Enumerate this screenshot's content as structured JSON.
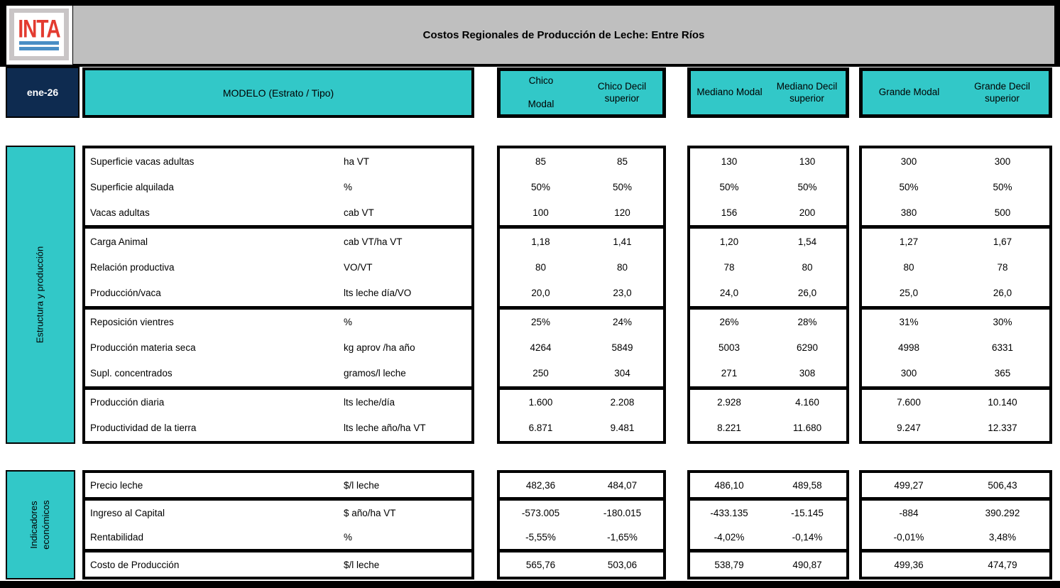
{
  "header": {
    "logo_text": "INTA",
    "title": "Costos Regionales de Producción de Leche: Entre Ríos",
    "date": "ene-26",
    "model_label": "MODELO (Estrato / Tipo)",
    "column_groups": [
      {
        "modal": "Chico\nModal",
        "decil": "Chico Decil superior"
      },
      {
        "modal": "Mediano Modal",
        "decil": "Mediano Decil superior"
      },
      {
        "modal": "Grande Modal",
        "decil": "Grande Decil superior"
      }
    ]
  },
  "colors": {
    "teal": "#32C8C8",
    "navy": "#0E2B50",
    "header_gray": "#BFBFBF",
    "logo_gray": "#C9C5C6",
    "logo_red": "#E33B30",
    "logo_blue": "#4A8EC5"
  },
  "sections": [
    {
      "name": "Estructura y producción",
      "blocks": [
        {
          "rows": [
            {
              "label": "Superficie vacas adultas",
              "unit": "ha VT",
              "values": [
                "85",
                "85",
                "130",
                "130",
                "300",
                "300"
              ]
            },
            {
              "label": "Superficie alquilada",
              "unit": "%",
              "values": [
                "50%",
                "50%",
                "50%",
                "50%",
                "50%",
                "50%"
              ]
            },
            {
              "label": "Vacas adultas",
              "unit": "cab VT",
              "values": [
                "100",
                "120",
                "156",
                "200",
                "380",
                "500"
              ]
            }
          ]
        },
        {
          "rows": [
            {
              "label": "Carga Animal",
              "unit": "cab VT/ha VT",
              "values": [
                "1,18",
                "1,41",
                "1,20",
                "1,54",
                "1,27",
                "1,67"
              ]
            },
            {
              "label": "Relación productiva",
              "unit": "VO/VT",
              "values": [
                "80",
                "80",
                "78",
                "80",
                "80",
                "78"
              ]
            },
            {
              "label": "Producción/vaca",
              "unit": "lts leche día/VO",
              "values": [
                "20,0",
                "23,0",
                "24,0",
                "26,0",
                "25,0",
                "26,0"
              ]
            }
          ]
        },
        {
          "rows": [
            {
              "label": "Reposición vientres",
              "unit": "%",
              "values": [
                "25%",
                "24%",
                "26%",
                "28%",
                "31%",
                "30%"
              ]
            },
            {
              "label": "Producción materia seca",
              "unit": "kg aprov /ha año",
              "values": [
                "4264",
                "5849",
                "5003",
                "6290",
                "4998",
                "6331"
              ]
            },
            {
              "label": "Supl. concentrados",
              "unit": "gramos/l leche",
              "values": [
                "250",
                "304",
                "271",
                "308",
                "300",
                "365"
              ]
            }
          ]
        },
        {
          "rows": [
            {
              "label": "Producción diaria",
              "unit": "lts leche/día",
              "values": [
                "1.600",
                "2.208",
                "2.928",
                "4.160",
                "7.600",
                "10.140"
              ]
            },
            {
              "label": "Productividad de la tierra",
              "unit": "lts leche año/ha VT",
              "values": [
                "6.871",
                "9.481",
                "8.221",
                "11.680",
                "9.247",
                "12.337"
              ]
            }
          ]
        }
      ]
    },
    {
      "name": "Indicadores\neconómicos",
      "blocks": [
        {
          "rows": [
            {
              "label": "Precio leche",
              "unit": "$/l leche",
              "values": [
                "482,36",
                "484,07",
                "486,10",
                "489,58",
                "499,27",
                "506,43"
              ]
            }
          ]
        },
        {
          "rows": [
            {
              "label": "Ingreso al Capital",
              "unit": "$ año/ha VT",
              "values": [
                "-573.005",
                "-180.015",
                "-433.135",
                "-15.145",
                "-884",
                "390.292"
              ]
            },
            {
              "label": "Rentabilidad",
              "unit": "%",
              "values": [
                "-5,55%",
                "-1,65%",
                "-4,02%",
                "-0,14%",
                "-0,01%",
                "3,48%"
              ]
            }
          ]
        },
        {
          "rows": [
            {
              "label": "Costo de Producción",
              "unit": "$/l leche",
              "values": [
                "565,76",
                "503,06",
                "538,79",
                "490,87",
                "499,36",
                "474,79"
              ]
            }
          ]
        }
      ]
    }
  ]
}
